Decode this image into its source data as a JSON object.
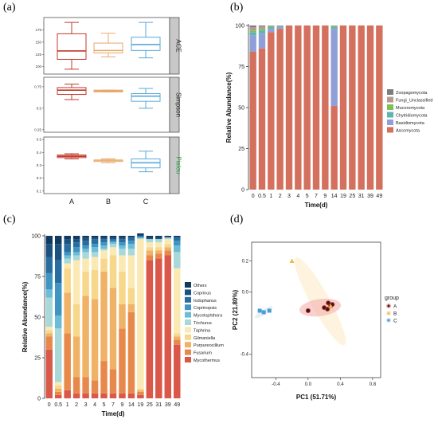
{
  "panels": {
    "a": {
      "label": "(a)",
      "chart_data": {
        "type": "box",
        "groups": [
          "A",
          "B",
          "C"
        ],
        "colors": [
          "#c0392b",
          "#e8a86a",
          "#5aa9d6"
        ],
        "strip_color": "#c8c8c8",
        "facets": [
          {
            "name": "ACE",
            "ylim": [
              85,
              200
            ],
            "ticks": [
              100,
              125,
              150,
              175
            ],
            "boxes": [
              {
                "min": 95,
                "q1": 115,
                "median": 132,
                "q3": 167,
                "max": 190
              },
              {
                "min": 120,
                "q1": 128,
                "median": 133,
                "q3": 148,
                "max": 168
              },
              {
                "min": 118,
                "q1": 133,
                "median": 145,
                "q3": 160,
                "max": 190
              }
            ]
          },
          {
            "name": "Simpson",
            "ylim": [
              0.22,
              0.86
            ],
            "ticks": [
              0.25,
              0.5,
              0.75
            ],
            "boxes": [
              {
                "min": 0.6,
                "q1": 0.66,
                "median": 0.71,
                "q3": 0.74,
                "max": 0.78
              },
              {
                "min": 0.69,
                "q1": 0.69,
                "median": 0.7,
                "q3": 0.71,
                "max": 0.71
              },
              {
                "min": 0.5,
                "q1": 0.58,
                "median": 0.64,
                "q3": 0.67,
                "max": 0.73
              }
            ]
          },
          {
            "name": "Pielou",
            "ylim": [
              0.08,
              0.52
            ],
            "ticks": [
              0.1,
              0.2,
              0.3,
              0.4,
              0.5
            ],
            "boxes": [
              {
                "min": 0.35,
                "q1": 0.36,
                "median": 0.37,
                "q3": 0.38,
                "max": 0.39
              },
              {
                "min": 0.32,
                "q1": 0.33,
                "median": 0.34,
                "q3": 0.34,
                "max": 0.35
              },
              {
                "min": 0.25,
                "q1": 0.28,
                "median": 0.32,
                "q3": 0.35,
                "max": 0.41
              }
            ]
          }
        ]
      }
    },
    "b": {
      "label": "(b)",
      "chart_data": {
        "type": "bar",
        "stacked": true,
        "xlabel": "Time(d)",
        "ylabel": "Relative Abundance(%)",
        "ylim": [
          0,
          100
        ],
        "yticks": [
          0,
          25,
          50,
          75,
          100
        ],
        "categories": [
          "0",
          "0.5",
          "1",
          "2",
          "3",
          "4",
          "5",
          "7",
          "9",
          "14",
          "19",
          "25",
          "31",
          "39",
          "49"
        ],
        "series": [
          {
            "name": "Ascomycota",
            "color": "#d4705e",
            "values": [
              84,
              86,
              96,
              98,
              100,
              100,
              100,
              100,
              100,
              51,
              100,
              100,
              100,
              100,
              100
            ]
          },
          {
            "name": "Basidiomycota",
            "color": "#8fa0d8",
            "values": [
              10,
              9,
              2,
              1,
              0,
              0,
              0,
              0,
              0,
              47,
              0,
              0,
              0,
              0,
              0
            ]
          },
          {
            "name": "Chytridiomycota",
            "color": "#5fb4b0",
            "values": [
              2,
              2,
              1,
              0.5,
              0,
              0,
              0,
              0,
              0,
              1,
              0,
              0,
              0,
              0,
              0
            ]
          },
          {
            "name": "Mucoromycota",
            "color": "#7fbf58",
            "values": [
              1,
              1,
              0.5,
              0,
              0,
              0,
              0,
              0,
              0,
              0.5,
              0,
              0,
              0,
              0,
              0
            ]
          },
          {
            "name": "Fungi_Unclassified",
            "color": "#b39b92",
            "values": [
              2,
              1.5,
              0.5,
              0.5,
              0,
              0,
              0,
              0,
              0,
              0.5,
              0,
              0,
              0,
              0,
              0
            ]
          },
          {
            "name": "Zoopagomycota",
            "color": "#7d7d7d",
            "values": [
              1,
              0.5,
              0,
              0,
              0,
              0,
              0,
              0,
              0,
              0,
              0,
              0,
              0,
              0,
              0
            ]
          }
        ],
        "legend_position": "right"
      }
    },
    "c": {
      "label": "(c)",
      "chart_data": {
        "type": "bar",
        "stacked": true,
        "xlabel": "Time(d)",
        "ylabel": "Relative Abundance(%)",
        "ylim": [
          0,
          100
        ],
        "yticks": [
          0,
          25,
          50,
          75,
          100
        ],
        "categories": [
          "0",
          "0.5",
          "1",
          "2",
          "3",
          "4",
          "5",
          "7",
          "9",
          "14",
          "19",
          "25",
          "31",
          "39",
          "49"
        ],
        "series": [
          {
            "name": "Mycothermus",
            "color": "#d9584a",
            "values": [
              30,
              2,
              5,
              3,
              3,
              3,
              3,
              3,
              3,
              3,
              2,
              85,
              86,
              88,
              33
            ]
          },
          {
            "name": "Fusarium",
            "color": "#e8894c",
            "values": [
              8,
              2,
              35,
              10,
              10,
              8,
              20,
              15,
              40,
              50,
              2,
              3,
              3,
              3,
              3
            ]
          },
          {
            "name": "Purpureocillium",
            "color": "#f0b266",
            "values": [
              2,
              2,
              25,
              25,
              50,
              50,
              55,
              50,
              15,
              5,
              1,
              3,
              2,
              2,
              2
            ]
          },
          {
            "name": "Gilmaniella",
            "color": "#f7d789",
            "values": [
              2,
              2,
              15,
              20,
              15,
              18,
              8,
              20,
              20,
              10,
              1,
              2,
              2,
              2,
              2
            ]
          },
          {
            "name": "Taphrina",
            "color": "#fbe9b4",
            "values": [
              2,
              2,
              3,
              27,
              8,
              8,
              5,
              5,
              10,
              20,
              92,
              3,
              3,
              3,
              40
            ]
          },
          {
            "name": "Trichurus",
            "color": "#a8d8d8",
            "values": [
              18,
              33,
              3,
              3,
              4,
              3,
              1,
              2,
              4,
              4,
              0.5,
              2,
              2,
              1,
              10
            ]
          },
          {
            "name": "Mycelophthora",
            "color": "#6bbcd6",
            "values": [
              5,
              8,
              2,
              2,
              2,
              3,
              2,
              1,
              2,
              3,
              0.5,
              0,
              0,
              0,
              4
            ]
          },
          {
            "name": "Coprinopsis",
            "color": "#3e95c2",
            "values": [
              10,
              20,
              2,
              3,
              2,
              2,
              2,
              1,
              2,
              2,
              0.5,
              0,
              0,
              0,
              3
            ]
          },
          {
            "name": "Iodophanus",
            "color": "#276d9f",
            "values": [
              10,
              14,
              5,
              3,
              3,
              3,
              2,
              1,
              2,
              2,
              0.5,
              0,
              0,
              0,
              2
            ]
          },
          {
            "name": "Coprinus",
            "color": "#1b5180",
            "values": [
              8,
              10,
              3,
              2,
              2,
              1,
              1,
              1,
              1,
              0.5,
              0.5,
              1,
              1,
              0.5,
              0.5
            ]
          },
          {
            "name": "Others",
            "color": "#103a5e",
            "values": [
              5,
              5,
              2,
              2,
              1,
              1,
              1,
              1,
              1,
              0.5,
              1,
              1,
              1,
              0.5,
              0.5
            ]
          }
        ],
        "legend_position": "right"
      }
    },
    "d": {
      "label": "(d)",
      "chart_data": {
        "type": "scatter",
        "xlabel": "PC1 (51.71%)",
        "ylabel": "PC2 (21.80%)",
        "xlim": [
          -0.7,
          0.9
        ],
        "ylim": [
          -0.55,
          0.32
        ],
        "xticks": [
          -0.4,
          0.0,
          0.4,
          0.8
        ],
        "yticks": [
          -0.4,
          0.0,
          0.2
        ],
        "legend_title": "group",
        "groups": [
          {
            "name": "A",
            "color": "#c8332e",
            "fill": "#f2aaaa",
            "marker": "circle",
            "points": [
              [
                0.0,
                -0.12
              ],
              [
                0.2,
                -0.1
              ],
              [
                0.25,
                -0.07
              ],
              [
                0.28,
                -0.09
              ],
              [
                0.3,
                -0.08
              ],
              [
                0.24,
                -0.11
              ]
            ],
            "ellipse": {
              "cx": 0.15,
              "cy": -0.1,
              "rx": 0.26,
              "ry": 0.055,
              "angle": -8
            }
          },
          {
            "name": "B",
            "color": "#f0b64f",
            "fill": "#fde9c2",
            "marker": "triangle",
            "points": [
              [
                -0.2,
                0.2
              ],
              [
                0.28,
                -0.09
              ]
            ],
            "ellipse": {
              "cx": 0.15,
              "cy": -0.06,
              "rx": 0.62,
              "ry": 0.06,
              "angle": 61
            }
          },
          {
            "name": "C",
            "color": "#4d9dd4",
            "fill": "#cfe5f4",
            "marker": "square",
            "points": [
              [
                -0.55,
                -0.13
              ],
              [
                -0.48,
                -0.12
              ],
              [
                -0.6,
                -0.12
              ]
            ],
            "ellipse": {
              "cx": -0.55,
              "cy": -0.13,
              "rx": 0.13,
              "ry": 0.018,
              "angle": -32
            }
          }
        ]
      }
    }
  }
}
